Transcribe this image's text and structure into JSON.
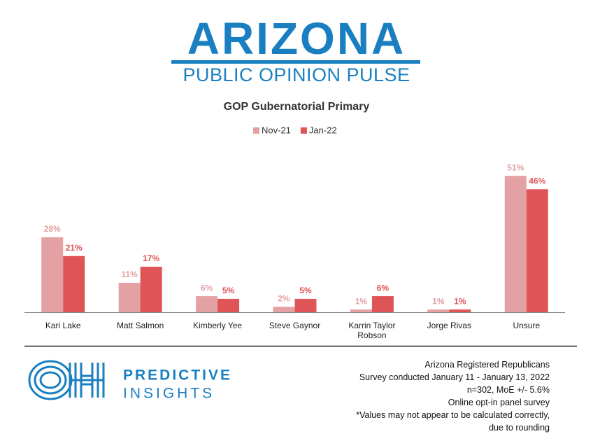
{
  "header": {
    "title": "ARIZONA",
    "subtitle": "PUBLIC OPINION PULSE"
  },
  "chart_data": {
    "type": "bar",
    "title": "GOP Gubernatorial Primary",
    "categories": [
      "Kari Lake",
      "Matt Salmon",
      "Kimberly Yee",
      "Steve Gaynor",
      "Karrin Taylor Robson",
      "Jorge Rivas",
      "Unsure"
    ],
    "series": [
      {
        "name": "Nov-21",
        "color": "#e3a1a3",
        "values": [
          28,
          11,
          6,
          2,
          1,
          1,
          51
        ],
        "value_labels": [
          "28%",
          "11%",
          "6%",
          "2%",
          "1%",
          "1%",
          "51%"
        ]
      },
      {
        "name": "Jan-22",
        "color": "#de5457",
        "values": [
          21,
          17,
          5,
          5,
          6,
          1,
          46
        ],
        "value_labels": [
          "21%",
          "17%",
          "5%",
          "5%",
          "6%",
          "1%",
          "46%"
        ]
      }
    ]
  },
  "footer": {
    "brand": [
      "PREDICTIVE",
      "INSIGHTS"
    ],
    "notes": [
      "Arizona Registered Republicans",
      "Survey conducted January 11 - January 13, 2022",
      "n=302, MoE +/- 5.6%",
      "Online opt-in panel survey",
      "*Values may not appear to be calculated correctly,",
      "due to rounding"
    ]
  }
}
